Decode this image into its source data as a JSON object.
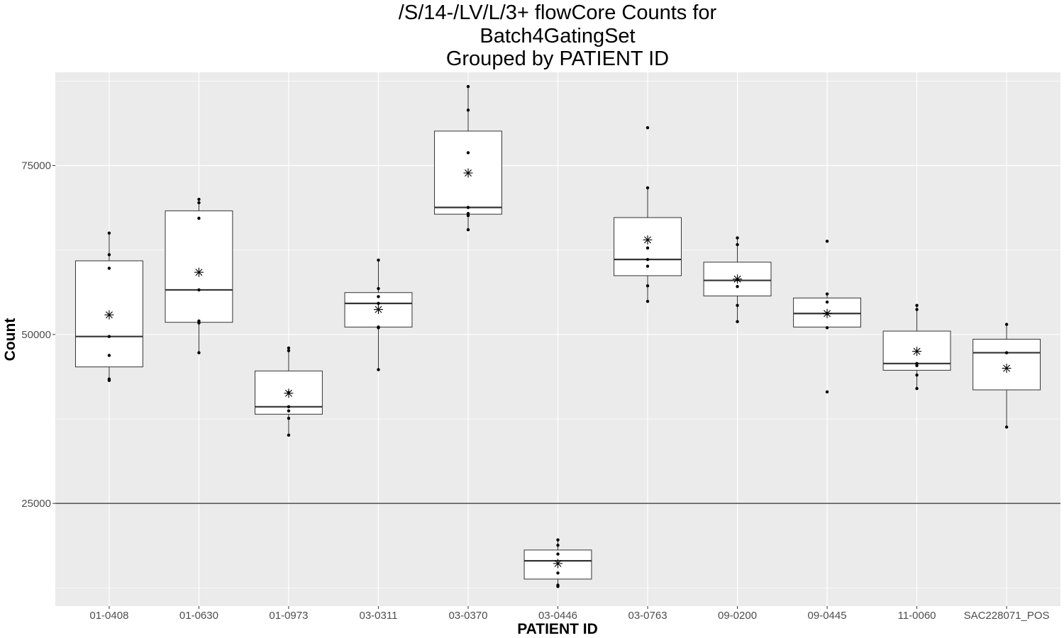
{
  "chart_data": {
    "type": "box",
    "title_lines": [
      "/S/14-/LV/L/3+ flowCore Counts for",
      "Batch4GatingSet",
      "Grouped by PATIENT ID"
    ],
    "xlabel": "PATIENT ID",
    "ylabel": "Count",
    "ylim": [
      9800,
      88800
    ],
    "y_ticks": [
      25000,
      50000,
      75000
    ],
    "y_tick_labels": [
      "25000",
      "50000",
      "75000"
    ],
    "y_minor_ticks": [
      12500,
      37500,
      62500,
      87500
    ],
    "reference_line": 25000,
    "grid": true,
    "categories": [
      "01-0408",
      "01-0630",
      "01-0973",
      "03-0311",
      "03-0370",
      "03-0446",
      "03-0763",
      "09-0200",
      "09-0445",
      "11-0060",
      "SAC228071_POS"
    ],
    "boxes": [
      {
        "q1": 45200,
        "median": 49700,
        "q3": 60900,
        "whisker_low": 43200,
        "whisker_high": 65000,
        "mean": 52900,
        "points": [
          65000,
          61800,
          59800,
          49700,
          46900,
          43400,
          43200
        ]
      },
      {
        "q1": 51800,
        "median": 56600,
        "q3": 68300,
        "whisker_low": 47300,
        "whisker_high": 70000,
        "mean": 59200,
        "points": [
          70000,
          69500,
          67200,
          56600,
          52000,
          51700,
          47300
        ]
      },
      {
        "q1": 38200,
        "median": 39300,
        "q3": 44600,
        "whisker_low": 35100,
        "whisker_high": 48000,
        "mean": 41300,
        "points": [
          48000,
          47600,
          41400,
          39300,
          38700,
          37600,
          35100
        ]
      },
      {
        "q1": 51100,
        "median": 54600,
        "q3": 56200,
        "whisker_low": 44800,
        "whisker_high": 61000,
        "mean": 53700,
        "points": [
          61000,
          56800,
          55600,
          54600,
          51100,
          51000,
          44800
        ]
      },
      {
        "q1": 67800,
        "median": 68800,
        "q3": 80100,
        "whisker_low": 65500,
        "whisker_high": 86700,
        "mean": 73900,
        "points": [
          86700,
          83200,
          76900,
          68800,
          67900,
          67600,
          65500
        ]
      },
      {
        "q1": 13800,
        "median": 16500,
        "q3": 18100,
        "whisker_low": 12700,
        "whisker_high": 19600,
        "mean": 16100,
        "points": [
          19600,
          18800,
          17500,
          14700,
          12900,
          12700
        ]
      },
      {
        "q1": 58700,
        "median": 61100,
        "q3": 67300,
        "whisker_low": 54900,
        "whisker_high": 71700,
        "mean": 64000,
        "points": [
          80600,
          71700,
          62800,
          61100,
          60100,
          57200,
          54900
        ]
      },
      {
        "q1": 55700,
        "median": 58000,
        "q3": 60700,
        "whisker_low": 51900,
        "whisker_high": 64300,
        "mean": 58200,
        "points": [
          64300,
          63300,
          58100,
          57100,
          54300,
          51900
        ]
      },
      {
        "q1": 51100,
        "median": 53100,
        "q3": 55400,
        "whisker_low": 51000,
        "whisker_high": 56000,
        "mean": 53100,
        "points": [
          63800,
          56000,
          54800,
          53100,
          51000,
          41500
        ]
      },
      {
        "q1": 44700,
        "median": 45700,
        "q3": 50500,
        "whisker_low": 42000,
        "whisker_high": 54300,
        "mean": 47500,
        "points": [
          54300,
          53700,
          45700,
          45400,
          44000,
          42000
        ]
      },
      {
        "q1": 41800,
        "median": 47300,
        "q3": 49300,
        "whisker_low": 36300,
        "whisker_high": 51500,
        "mean": 45000,
        "points": [
          51500,
          47300,
          36300
        ]
      }
    ]
  },
  "colors": {
    "panel_background": "#ebebeb",
    "grid_major": "#ffffff",
    "box_fill": "#ffffff",
    "box_stroke": "#333333",
    "median_stroke": "#333333",
    "point": "#000000",
    "reference_line": "#4d4d4d",
    "tick_text": "#4d4d4d"
  }
}
